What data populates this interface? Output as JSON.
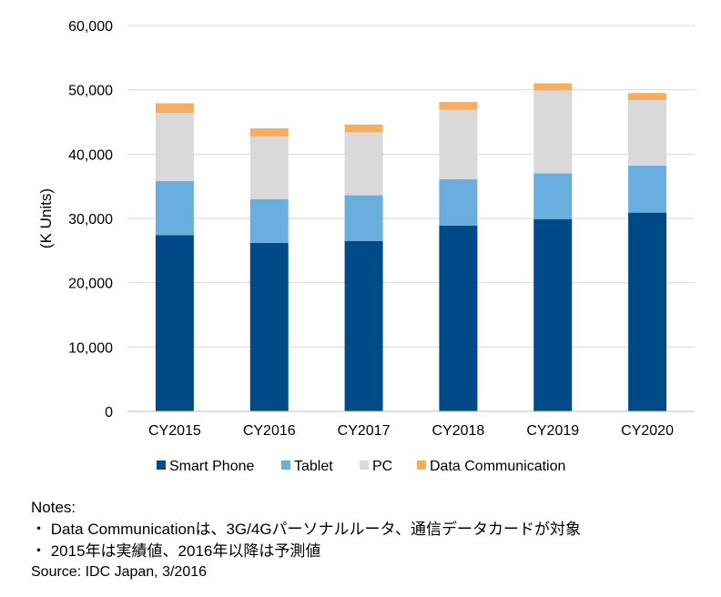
{
  "chart_data": {
    "type": "bar",
    "stacked": true,
    "categories": [
      "CY2015",
      "CY2016",
      "CY2017",
      "CY2018",
      "CY2019",
      "CY2020"
    ],
    "series": [
      {
        "name": "Smart Phone",
        "color": "#004B87",
        "values": [
          27400,
          26200,
          26500,
          28900,
          29900,
          30900
        ]
      },
      {
        "name": "Tablet",
        "color": "#6AAEDF",
        "values": [
          8400,
          6800,
          7100,
          7200,
          7100,
          7300
        ]
      },
      {
        "name": "PC",
        "color": "#D9D9D9",
        "values": [
          10600,
          9700,
          9800,
          10800,
          12900,
          10200
        ]
      },
      {
        "name": "Data Communication",
        "color": "#F7AD5F",
        "values": [
          1500,
          1300,
          1200,
          1200,
          1100,
          1100
        ]
      }
    ],
    "ylabel": "(K Units)",
    "ylim": [
      0,
      60000
    ],
    "yticks": [
      0,
      10000,
      20000,
      30000,
      40000,
      50000,
      60000
    ],
    "ytick_labels": [
      "0",
      "10,000",
      "20,000",
      "30,000",
      "40,000",
      "50,000",
      "60,000"
    ],
    "grid": true,
    "legend": "bottom"
  },
  "notes": {
    "heading": "Notes:",
    "items": [
      "・ Data Communicationは、3G/4Gパーソナルルータ、通信データカードが対象",
      "・ 2015年は実績値、2016年以降は予測値"
    ],
    "source": "Source: IDC Japan, 3/2016"
  }
}
